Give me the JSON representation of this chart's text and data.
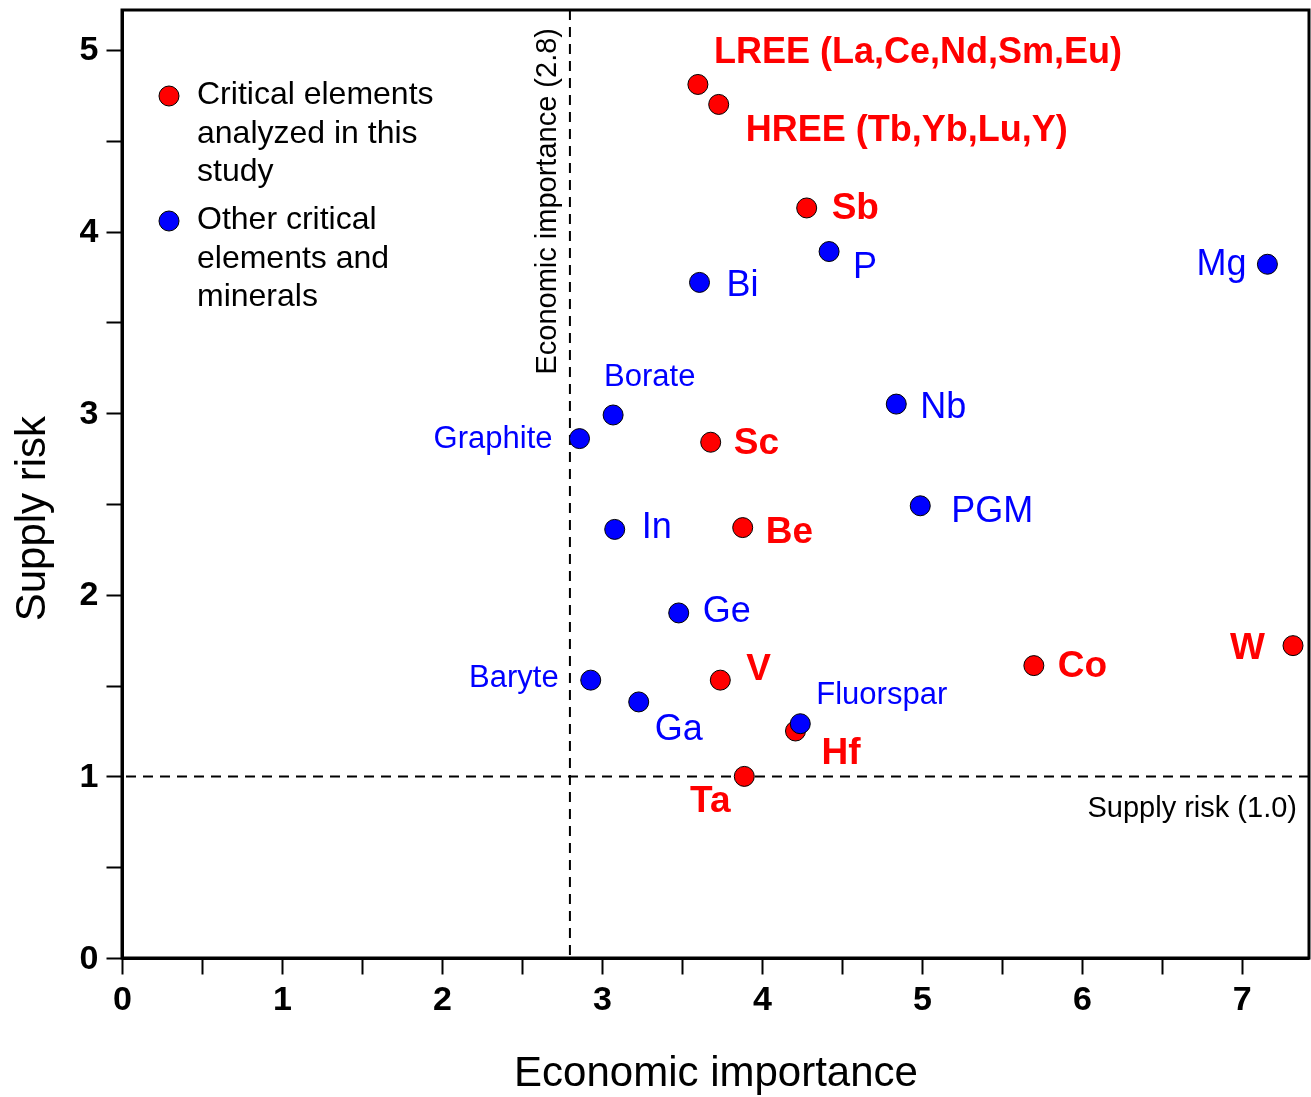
{
  "chart_data": {
    "type": "scatter",
    "xlabel": "Economic importance",
    "ylabel": "Supply risk",
    "xlim": [
      0,
      7.42
    ],
    "xticks": [
      0,
      {
        "value": 0.5,
        "label": null
      },
      1,
      {
        "value": 1.5,
        "label": null
      },
      2,
      {
        "value": 2.5,
        "label": null
      },
      3,
      {
        "value": 3.5,
        "label": null
      },
      4,
      {
        "value": 4.5,
        "label": null
      },
      5,
      {
        "value": 5.5,
        "label": null
      },
      6,
      {
        "value": 6.5,
        "label": null
      },
      7
    ],
    "ylim": [
      0,
      5.22
    ],
    "yticks": [
      0,
      {
        "value": 0.5,
        "label": null
      },
      1,
      {
        "value": 1.5,
        "label": null
      },
      2,
      {
        "value": 2.5,
        "label": null
      },
      3,
      {
        "value": 3.5,
        "label": null
      },
      4,
      {
        "value": 4.5,
        "label": null
      },
      5
    ],
    "marker": "circle",
    "legend": "top left",
    "series": [
      {
        "name": "Critical elements analyzed in this study",
        "color": "#ff0000",
        "x": [
          3.6,
          3.73,
          4.28,
          3.68,
          3.88,
          3.74,
          4.21,
          3.89,
          5.7,
          7.32
        ],
        "values": [
          4.81,
          4.7,
          4.13,
          2.84,
          2.37,
          1.53,
          1.25,
          1.0,
          1.61,
          1.72
        ]
      },
      {
        "name": "Other critical elements and minerals",
        "color": "#0000ff",
        "x": [
          4.42,
          3.61,
          7.16,
          3.07,
          2.86,
          4.84,
          4.99,
          3.08,
          3.48,
          2.93,
          3.23,
          4.24
        ],
        "values": [
          3.89,
          3.72,
          3.82,
          2.99,
          2.86,
          3.05,
          2.49,
          2.36,
          1.9,
          1.53,
          1.41,
          1.29
        ]
      }
    ],
    "ref_lines": [
      {
        "axis": "x",
        "value": 2.8,
        "label": "Economic importance (2.8)",
        "color": "#000000",
        "line_style": "dashed"
      },
      {
        "axis": "y",
        "value": 1.0,
        "label": "Supply risk (1.0)",
        "color": "#000000",
        "line_style": "dashed"
      }
    ],
    "annotations": [
      {
        "text": "LREE (La,Ce,Nd,Sm,Eu)",
        "x": 3.6,
        "y": 4.81
      },
      {
        "text": "HREE (Tb,Yb,Lu,Y)",
        "x": 3.73,
        "y": 4.7
      },
      {
        "text": "Sb",
        "x": 4.28,
        "y": 4.13
      },
      {
        "text": "Sc",
        "x": 3.68,
        "y": 2.84
      },
      {
        "text": "Be",
        "x": 3.88,
        "y": 2.37
      },
      {
        "text": "V",
        "x": 3.74,
        "y": 1.53
      },
      {
        "text": "Hf",
        "x": 4.21,
        "y": 1.25
      },
      {
        "text": "Ta",
        "x": 3.89,
        "y": 1.0
      },
      {
        "text": "Co",
        "x": 5.7,
        "y": 1.61
      },
      {
        "text": "W",
        "x": 7.32,
        "y": 1.72
      },
      {
        "text": "P",
        "x": 4.42,
        "y": 3.89
      },
      {
        "text": "Bi",
        "x": 3.61,
        "y": 3.72
      },
      {
        "text": "Mg",
        "x": 7.16,
        "y": 3.82
      },
      {
        "text": "Borate",
        "x": 3.07,
        "y": 2.99
      },
      {
        "text": "Graphite",
        "x": 2.86,
        "y": 2.86
      },
      {
        "text": "Nb",
        "x": 4.84,
        "y": 3.05
      },
      {
        "text": "PGM",
        "x": 4.99,
        "y": 2.49
      },
      {
        "text": "In",
        "x": 3.08,
        "y": 2.36
      },
      {
        "text": "Ge",
        "x": 3.48,
        "y": 1.9
      },
      {
        "text": "Baryte",
        "x": 2.93,
        "y": 1.53
      },
      {
        "text": "Ga",
        "x": 3.23,
        "y": 1.41
      },
      {
        "text": "Fluorspar",
        "x": 4.24,
        "y": 1.29
      }
    ]
  }
}
